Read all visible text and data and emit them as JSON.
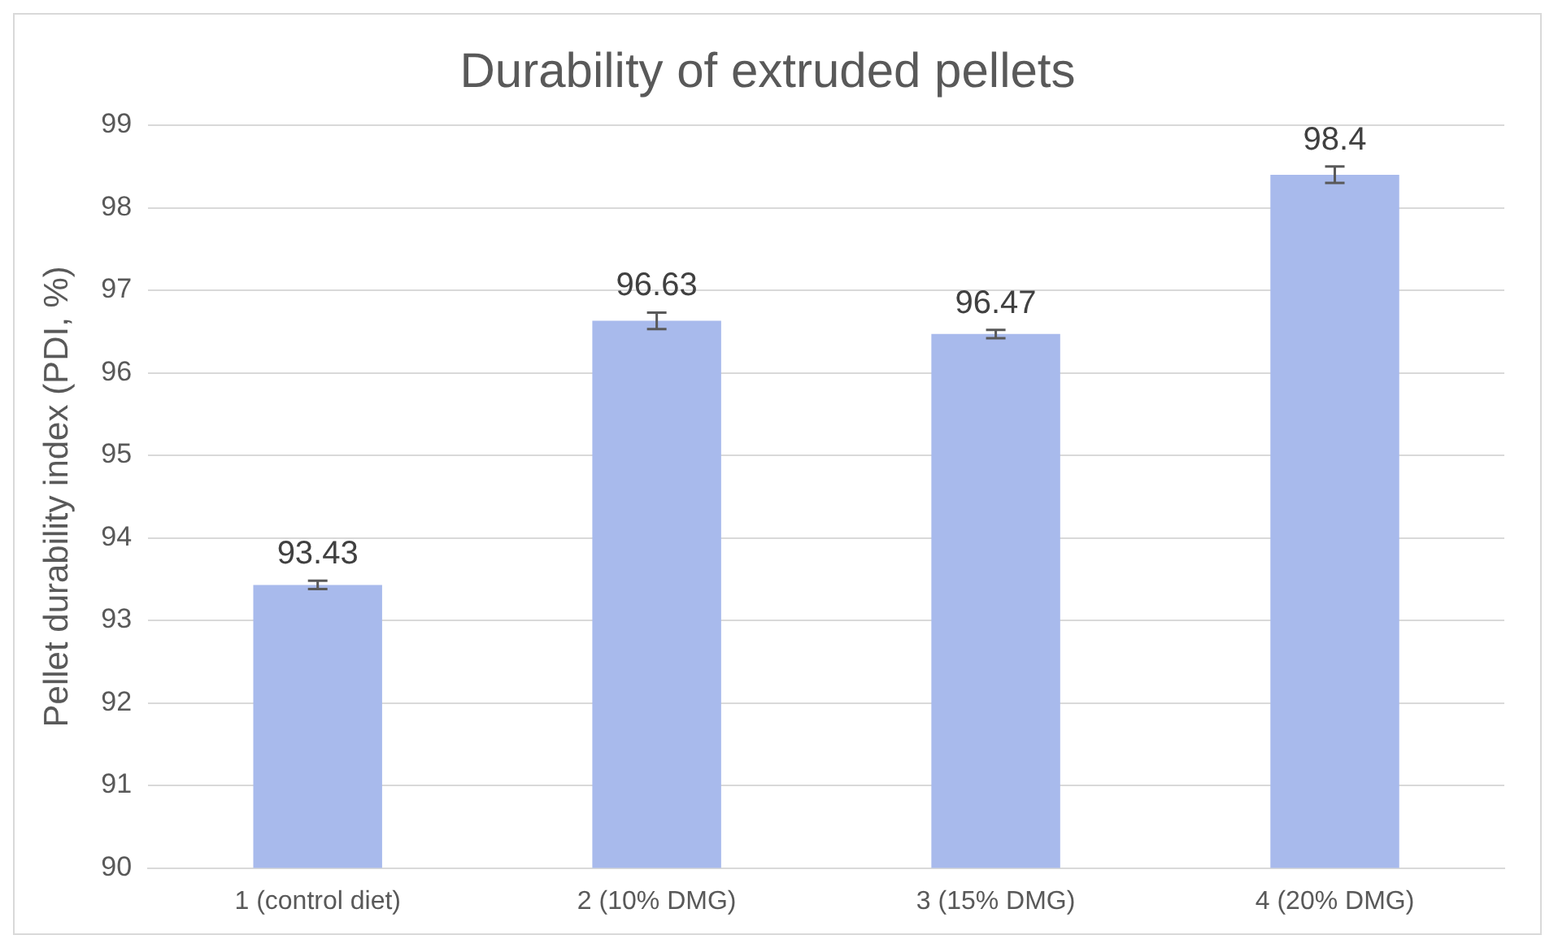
{
  "chart_data": {
    "type": "bar",
    "title": "Durability of extruded pellets",
    "ylabel": "Pellet durability index (PDI, %)",
    "categories": [
      "1 (control diet)",
      "2 (10% DMG)",
      "3 (15% DMG)",
      "4 (20% DMG)"
    ],
    "values": [
      93.43,
      96.63,
      96.47,
      98.4
    ],
    "errors": [
      0.05,
      0.1,
      0.05,
      0.1
    ],
    "color": "#a8baec",
    "ylim": [
      90,
      99
    ],
    "yticks": [
      90,
      91,
      92,
      93,
      94,
      95,
      96,
      97,
      98,
      99
    ],
    "grid": "y",
    "data_labels": true,
    "legend": false
  }
}
